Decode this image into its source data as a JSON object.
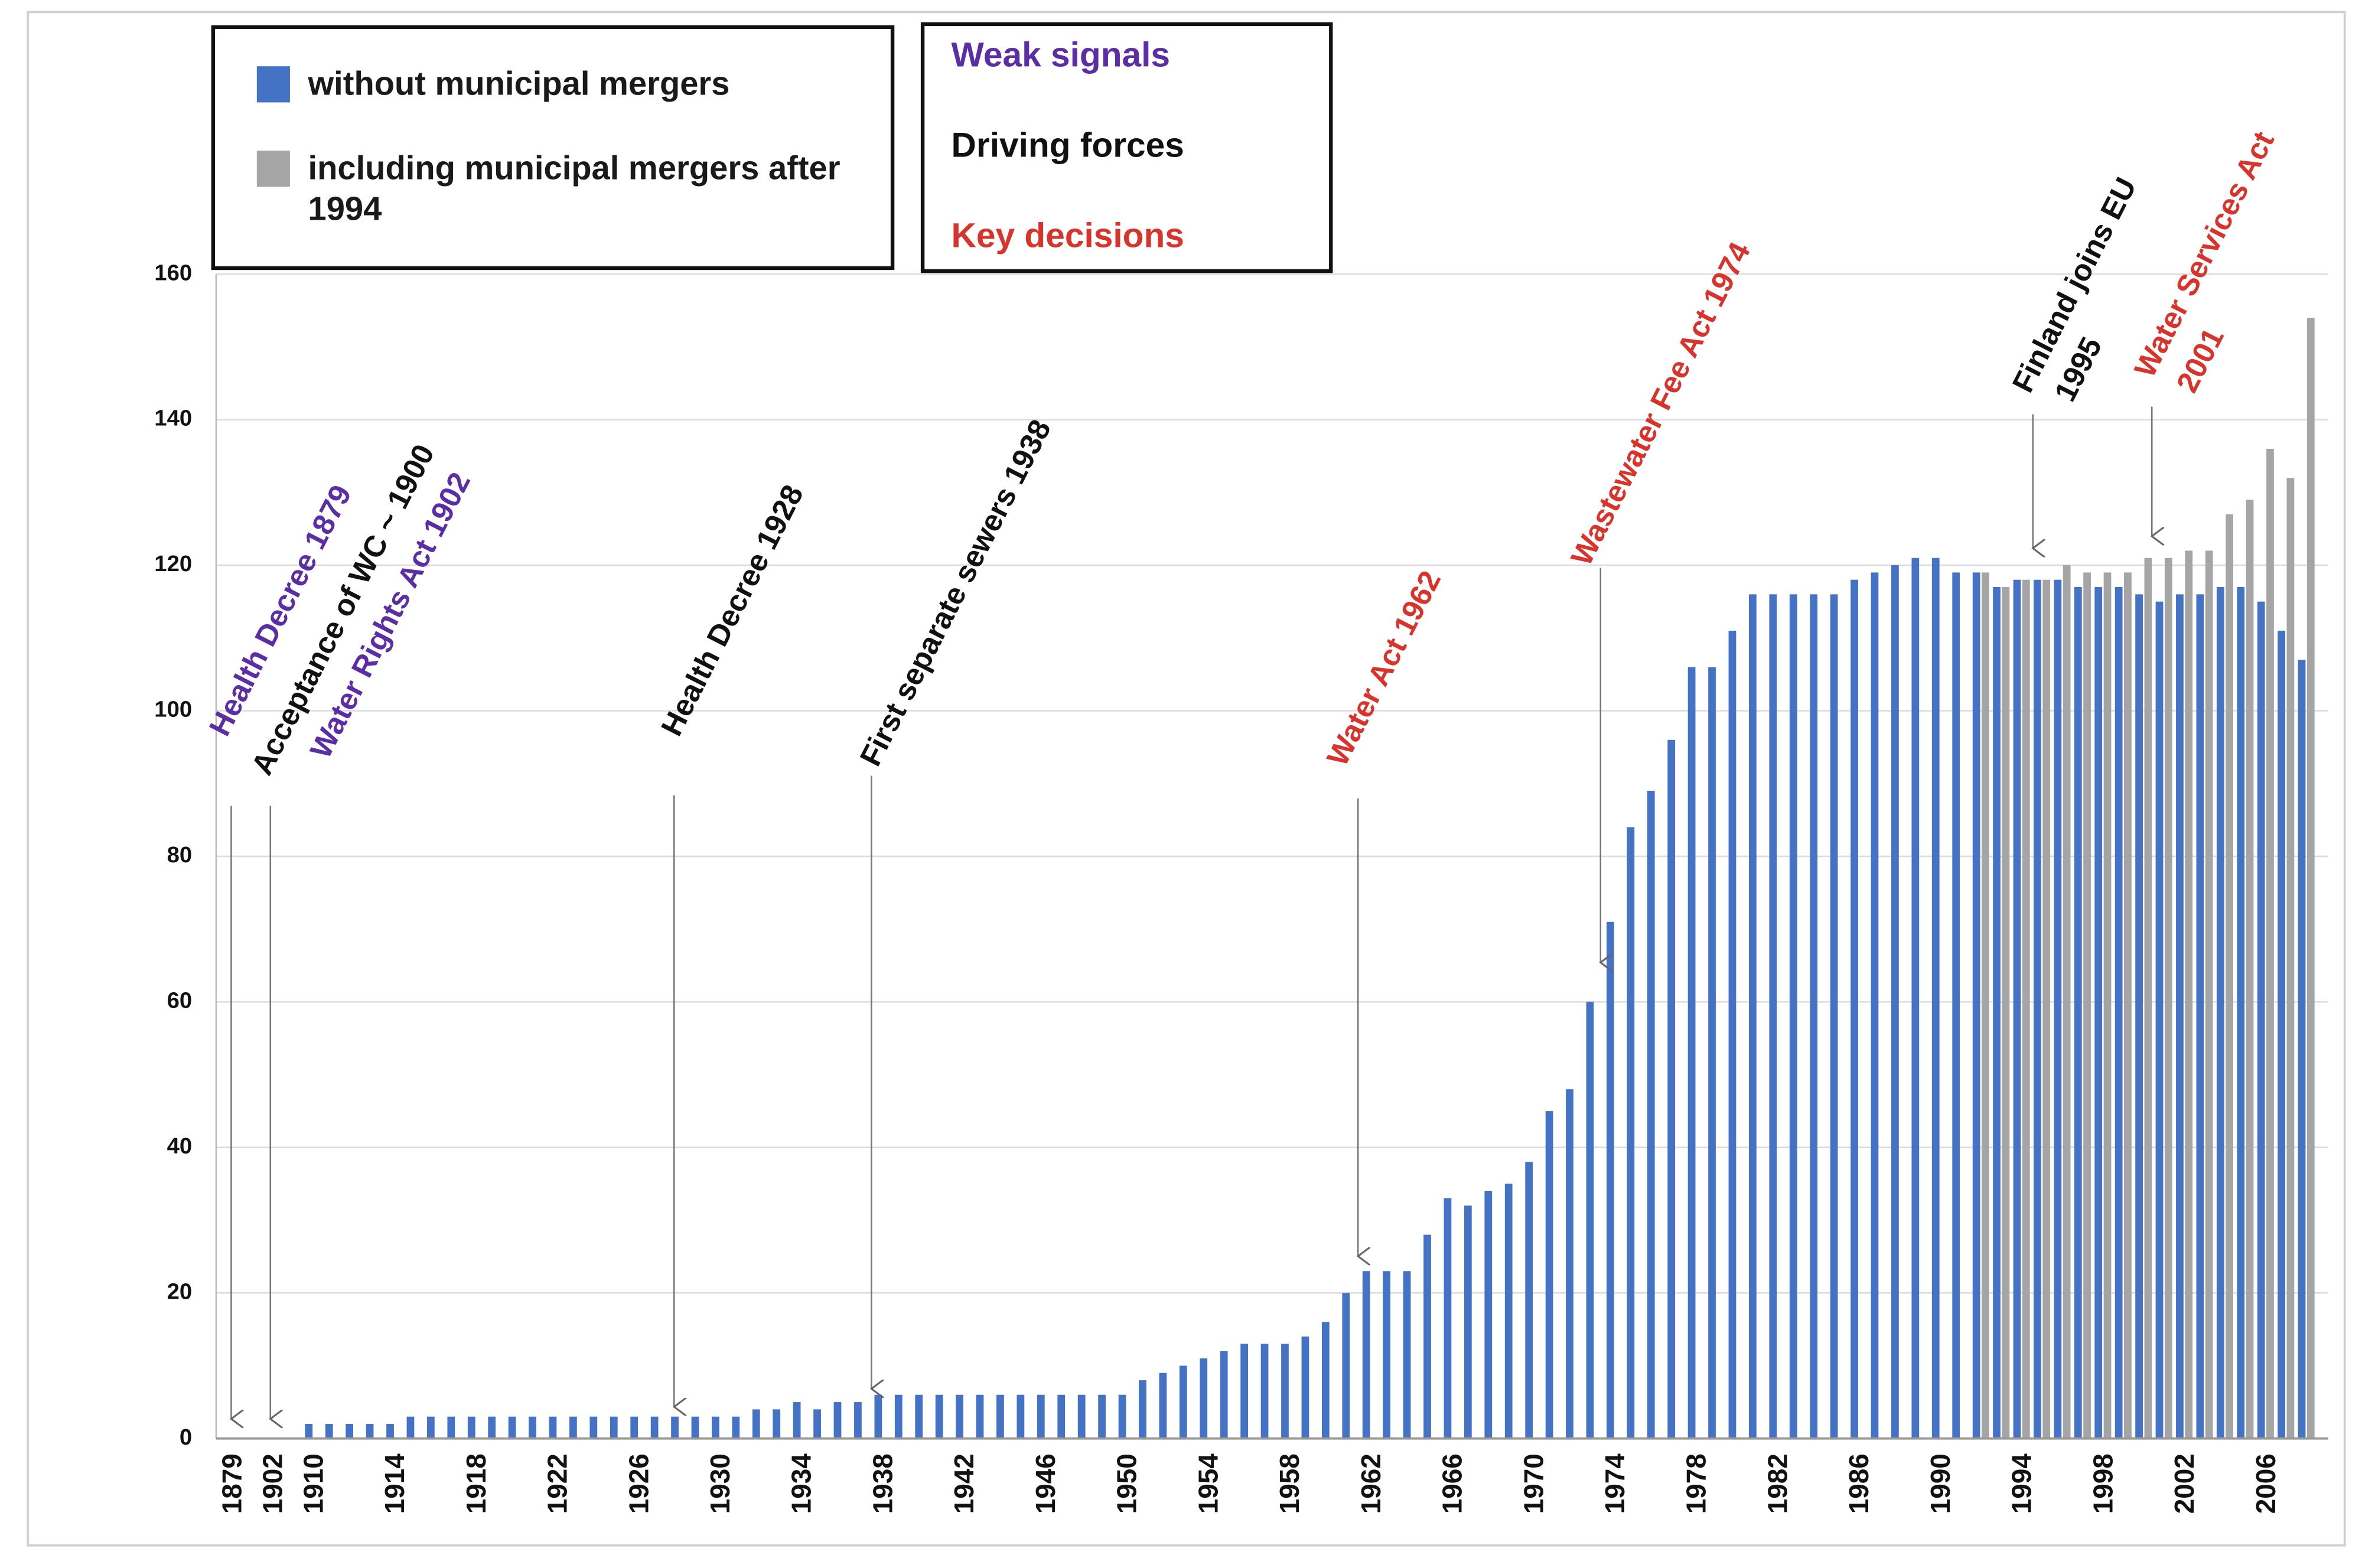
{
  "chart_data": {
    "type": "bar",
    "categories": [
      "1879",
      null,
      "1902",
      null,
      "1910",
      null,
      null,
      null,
      "1914",
      null,
      null,
      null,
      "1918",
      null,
      null,
      null,
      "1922",
      null,
      null,
      null,
      "1926",
      null,
      null,
      null,
      "1930",
      null,
      null,
      null,
      "1934",
      null,
      null,
      null,
      "1938",
      null,
      null,
      null,
      "1942",
      null,
      null,
      null,
      "1946",
      null,
      null,
      null,
      "1950",
      null,
      null,
      null,
      "1954",
      null,
      null,
      null,
      "1958",
      null,
      null,
      null,
      "1962",
      null,
      null,
      null,
      "1966",
      null,
      null,
      null,
      "1970",
      null,
      null,
      null,
      "1974",
      null,
      null,
      null,
      "1978",
      null,
      null,
      null,
      "1982",
      null,
      null,
      null,
      "1986",
      null,
      null,
      null,
      "1990",
      null,
      null,
      null,
      "1994",
      null,
      null,
      null,
      "1998",
      null,
      null,
      null,
      "2002",
      null,
      null,
      null,
      "2006",
      null,
      null
    ],
    "series": [
      {
        "name": "without municipal mergers",
        "color": "#4472c4",
        "values": [
          null,
          null,
          null,
          null,
          2,
          2,
          2,
          2,
          2,
          3,
          3,
          3,
          3,
          3,
          3,
          3,
          3,
          3,
          3,
          3,
          3,
          3,
          3,
          3,
          3,
          3,
          4,
          4,
          5,
          4,
          5,
          5,
          6,
          6,
          6,
          6,
          6,
          6,
          6,
          6,
          6,
          6,
          6,
          6,
          6,
          8,
          9,
          10,
          11,
          12,
          13,
          13,
          13,
          14,
          16,
          20,
          23,
          23,
          23,
          28,
          33,
          32,
          34,
          35,
          38,
          45,
          48,
          60,
          71,
          84,
          89,
          96,
          106,
          106,
          111,
          116,
          116,
          116,
          116,
          116,
          118,
          119,
          120,
          121,
          121,
          119,
          119,
          117,
          118,
          118,
          118,
          117,
          117,
          117,
          116,
          115,
          116,
          116,
          117,
          117,
          115,
          111,
          107
        ]
      },
      {
        "name": "including municipal mergers after 1994",
        "color": "#a5a5a5",
        "values": [
          null,
          null,
          null,
          null,
          null,
          null,
          null,
          null,
          null,
          null,
          null,
          null,
          null,
          null,
          null,
          null,
          null,
          null,
          null,
          null,
          null,
          null,
          null,
          null,
          null,
          null,
          null,
          null,
          null,
          null,
          null,
          null,
          null,
          null,
          null,
          null,
          null,
          null,
          null,
          null,
          null,
          null,
          null,
          null,
          null,
          null,
          null,
          null,
          null,
          null,
          null,
          null,
          null,
          null,
          null,
          null,
          null,
          null,
          null,
          null,
          null,
          null,
          null,
          null,
          null,
          null,
          null,
          null,
          null,
          null,
          null,
          null,
          null,
          null,
          null,
          null,
          null,
          null,
          null,
          null,
          null,
          null,
          null,
          null,
          null,
          null,
          119,
          117,
          118,
          118,
          120,
          119,
          119,
          119,
          121,
          121,
          122,
          122,
          127,
          129,
          136,
          132,
          154
        ]
      }
    ],
    "ylim": [
      0,
      160
    ],
    "yticks": [
      0,
      20,
      40,
      60,
      80,
      100,
      120,
      140,
      160
    ],
    "grid": true,
    "legend_groups": [
      {
        "name": "Weak signals",
        "color": "#5b2ea6"
      },
      {
        "name": "Driving forces",
        "color": "#111111"
      },
      {
        "name": "Key decisions",
        "color": "#d9342b"
      }
    ],
    "annotations": [
      {
        "lines": [
          "Health Decree 1879"
        ],
        "color": "#5b2ea6"
      },
      {
        "lines": [
          "Acceptance of WC ~ 1900"
        ],
        "color": "#111111"
      },
      {
        "lines": [
          "Water Rights Act 1902"
        ],
        "color": "#5b2ea6"
      },
      {
        "lines": [
          "Health Decree 1928"
        ],
        "color": "#111111"
      },
      {
        "lines": [
          "First separate sewers 1938"
        ],
        "color": "#111111"
      },
      {
        "lines": [
          "Water Act 1962"
        ],
        "color": "#d9342b"
      },
      {
        "lines": [
          "Wastewater Fee Act 1974"
        ],
        "color": "#d9342b"
      },
      {
        "lines": [
          "Finland joins EU",
          "1995"
        ],
        "color": "#111111"
      },
      {
        "lines": [
          "Water Services Act",
          "2001"
        ],
        "color": "#d9342b"
      }
    ]
  }
}
